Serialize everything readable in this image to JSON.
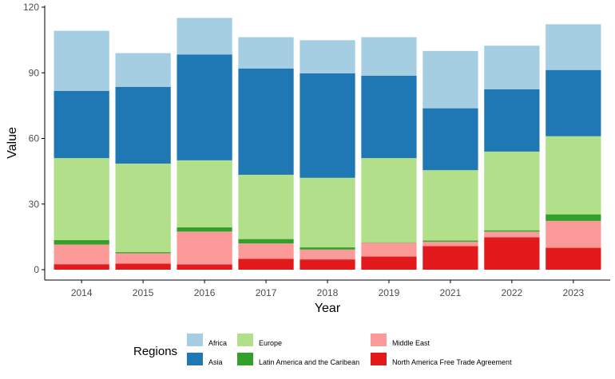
{
  "chart_data": {
    "type": "bar",
    "stacked": true,
    "title": "",
    "xlabel": "Year",
    "ylabel": "Value",
    "ylim": [
      0,
      120
    ],
    "yticks": [
      0,
      30,
      60,
      90,
      120
    ],
    "grid": false,
    "legend_title": "Regions",
    "legend_position": "bottom",
    "categories": [
      "2014",
      "2015",
      "2016",
      "2017",
      "2018",
      "2019",
      "2021",
      "2022",
      "2023"
    ],
    "series": [
      {
        "name": "North America Free Trade Agreement",
        "color": "#E31A1C",
        "values": [
          2.5,
          2.8,
          2.4,
          5.0,
          4.7,
          6.0,
          10.8,
          14.8,
          10.0
        ]
      },
      {
        "name": "Middle East",
        "color": "#FB9A99",
        "values": [
          9.0,
          4.7,
          15.0,
          7.0,
          4.5,
          6.3,
          2.0,
          2.6,
          12.3
        ]
      },
      {
        "name": "Latin America and the Caribean",
        "color": "#33A02C",
        "values": [
          2.0,
          0.5,
          2.0,
          2.0,
          1.0,
          0.2,
          0.5,
          0.6,
          3.0
        ]
      },
      {
        "name": "Europe",
        "color": "#B2DF8A",
        "values": [
          37.5,
          40.5,
          30.6,
          29.4,
          31.8,
          38.5,
          32.2,
          36.0,
          35.7
        ]
      },
      {
        "name": "Asia",
        "color": "#1F78B4",
        "values": [
          30.7,
          35.1,
          48.4,
          48.6,
          47.8,
          37.7,
          28.3,
          28.5,
          30.3
        ]
      },
      {
        "name": "Africa",
        "color": "#A6CEE3",
        "values": [
          27.5,
          15.4,
          16.7,
          14.3,
          15.1,
          17.6,
          26.2,
          19.9,
          20.9
        ]
      }
    ],
    "legend_order": [
      "Africa",
      "Asia",
      "Europe",
      "Latin America and the Caribean",
      "Middle East",
      "North America Free Trade Agreement"
    ]
  }
}
